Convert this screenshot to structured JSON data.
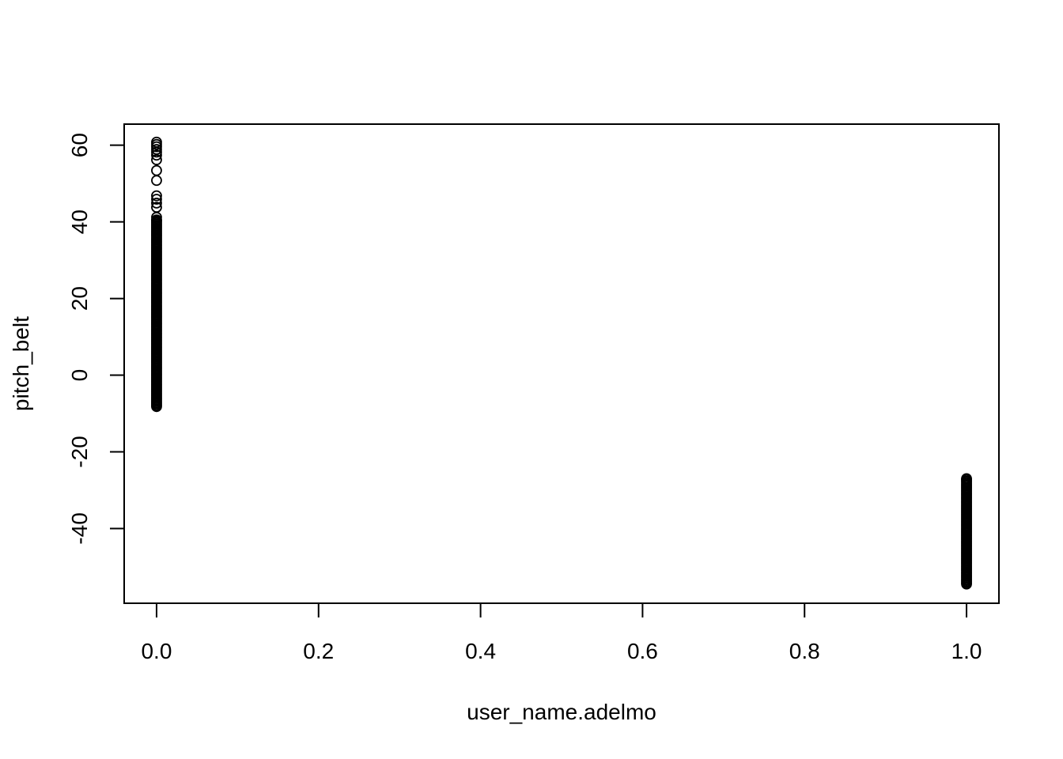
{
  "chart_data": {
    "type": "scatter",
    "title": "",
    "xlabel": "user_name.adelmo",
    "ylabel": "pitch_belt",
    "xlim": [
      -0.04,
      1.04
    ],
    "ylim": [
      -59.5,
      65.5
    ],
    "xticks": [
      0.0,
      0.2,
      0.4,
      0.6,
      0.8,
      1.0
    ],
    "xtick_labels": [
      "0.0",
      "0.2",
      "0.4",
      "0.6",
      "0.8",
      "1.0"
    ],
    "yticks": [
      -40,
      -20,
      0,
      20,
      40,
      60
    ],
    "ytick_labels": [
      "-40",
      "-20",
      "0",
      "20",
      "40",
      "60"
    ],
    "grid": false,
    "legend": "none",
    "marker": "open-circle",
    "colors": {
      "points": "#000000",
      "axes": "#000000",
      "background": "#ffffff"
    },
    "groups": [
      {
        "x": 0,
        "dense_range": [
          -8.2,
          40.5
        ],
        "outliers": [
          41.2,
          43.8,
          44.9,
          45.9,
          46.8,
          50.8,
          53.4,
          56.2,
          57.4,
          58.2,
          58.9,
          59.6,
          60.2,
          60.8
        ]
      },
      {
        "x": 1,
        "dense_range": [
          -54.5,
          -27.0
        ],
        "outliers": []
      }
    ]
  }
}
